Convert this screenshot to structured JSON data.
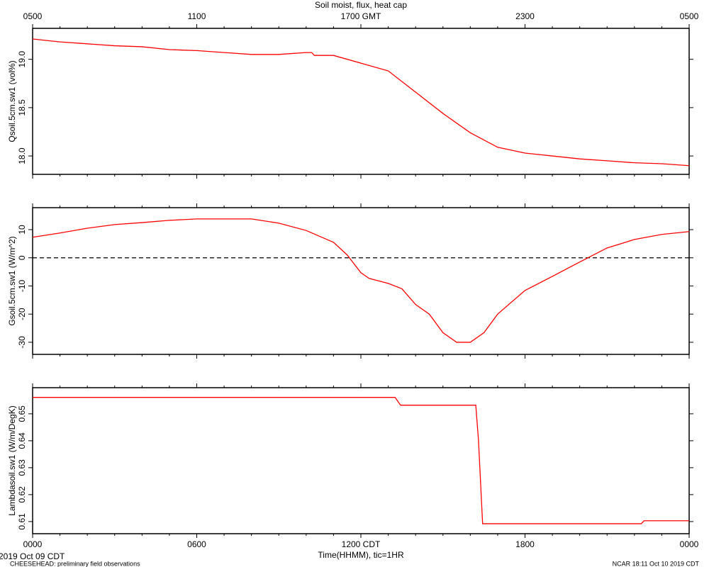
{
  "chart_data": [
    {
      "type": "line",
      "title": "Soil moist, flux, heat cap",
      "ylabel": "Qsoil.5cm.sw1 (vol%)",
      "x": [
        0,
        1,
        2,
        3,
        4,
        5,
        6,
        7,
        8,
        9,
        10,
        10.2,
        10.3,
        11,
        12,
        13,
        14,
        15,
        16,
        17,
        18,
        19,
        20,
        21,
        22,
        23,
        24
      ],
      "series": [
        {
          "name": "Qsoil.5cm.sw1",
          "color": "#ff0000",
          "values": [
            19.21,
            19.18,
            19.16,
            19.14,
            19.13,
            19.1,
            19.09,
            19.07,
            19.05,
            19.05,
            19.07,
            19.07,
            19.04,
            19.04,
            18.96,
            18.88,
            18.66,
            18.44,
            18.24,
            18.09,
            18.03,
            18.0,
            17.97,
            17.95,
            17.93,
            17.92,
            17.9
          ]
        }
      ],
      "xlim": [
        0,
        24
      ],
      "xticks": [
        0,
        6,
        12,
        18,
        24
      ],
      "x2ticks": [
        {
          "value": 0,
          "label": "0500"
        },
        {
          "value": 6,
          "label": "1100"
        },
        {
          "value": 12,
          "label": "1700 GMT"
        },
        {
          "value": 18,
          "label": "2300"
        },
        {
          "value": 24,
          "label": "0500"
        }
      ],
      "ylim": [
        17.81,
        19.32
      ],
      "yticks": [
        {
          "value": 18,
          "label": "18.0"
        },
        18.5,
        {
          "value": 19,
          "label": "19.0"
        }
      ]
    },
    {
      "type": "line",
      "ylabel": "Gsoil.5cm.sw1 (W/m^2)",
      "x": [
        0,
        1,
        2,
        3,
        4,
        5,
        6,
        7,
        8,
        9,
        10,
        11,
        11.5,
        12,
        12.3,
        13,
        13.5,
        14,
        14.5,
        15,
        15.5,
        16,
        16.5,
        17,
        18,
        19,
        20,
        21,
        22,
        23,
        24
      ],
      "series": [
        {
          "name": "Gsoil.5cm.sw1",
          "color": "#ff0000",
          "values": [
            7.3,
            8.8,
            10.5,
            11.8,
            12.5,
            13.3,
            13.8,
            13.8,
            13.8,
            12.3,
            9.7,
            5.5,
            1,
            -5.3,
            -7.3,
            -9.1,
            -11,
            -16.6,
            -20,
            -26.6,
            -30,
            -30,
            -26.6,
            -20,
            -11.6,
            -6.6,
            -1.5,
            3.5,
            6.5,
            8.3,
            9.3
          ]
        }
      ],
      "hline": 0,
      "xlim": [
        0,
        24
      ],
      "xticks": [
        0,
        6,
        12,
        18,
        24
      ],
      "ylim": [
        -34.3,
        17.8
      ],
      "yticks": [
        -30,
        -20,
        -10,
        0,
        10
      ]
    },
    {
      "type": "line",
      "ylabel": "Lambdasoil.sw1 (W/m/DegK)",
      "xlabel": "Time(HHMM), tic=1HR",
      "x": [
        0,
        13.25,
        13.45,
        16.2,
        16.3,
        16.45,
        22.25,
        22.35,
        24
      ],
      "series": [
        {
          "name": "Lambdasoil.sw1",
          "color": "#ff0000",
          "values": [
            0.6561,
            0.6561,
            0.6532,
            0.6532,
            0.64,
            0.6092,
            0.6092,
            0.6103,
            0.6103
          ]
        }
      ],
      "xlim": [
        0,
        24
      ],
      "xticks": [
        {
          "value": 0,
          "label": "0000"
        },
        {
          "value": 6,
          "label": "0600"
        },
        {
          "value": 12,
          "label": "1200 CDT"
        },
        {
          "value": 18,
          "label": "1800"
        },
        {
          "value": 24,
          "label": "0000"
        }
      ],
      "ylim": [
        0.6055,
        0.6597
      ],
      "yticks": [
        0.61,
        0.62,
        0.63,
        0.64,
        0.65
      ]
    }
  ],
  "footer": {
    "date": "2019 Oct 09 CDT",
    "note": "CHEESEHEAD: preliminary field observations",
    "stamp": "NCAR 18:11 Oct 10 2019 CDT"
  }
}
